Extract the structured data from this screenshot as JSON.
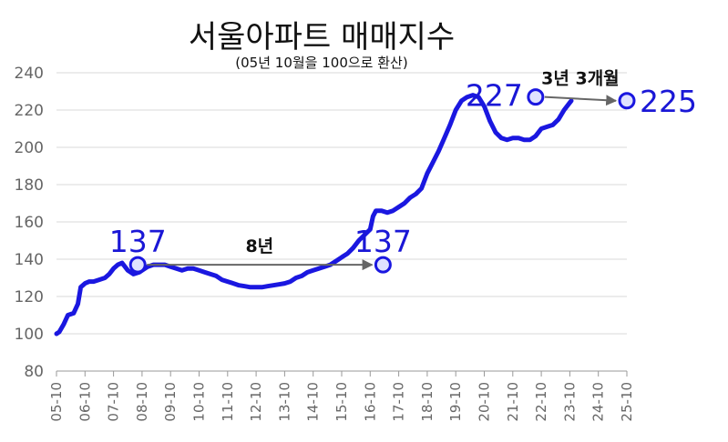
{
  "chart_data": {
    "type": "line",
    "title": "서울아파트 매매지수",
    "subtitle": "(05년 10월을 100으로 환산)",
    "ylim": [
      80,
      240
    ],
    "yticks": [
      "80",
      "100",
      "120",
      "140",
      "160",
      "180",
      "200",
      "220",
      "240"
    ],
    "categories": [
      "05-10",
      "06-10",
      "07-10",
      "08-10",
      "09-10",
      "10-10",
      "11-10",
      "12-10",
      "13-10",
      "14-10",
      "15-10",
      "16-10",
      "17-10",
      "18-10",
      "19-10",
      "20-10",
      "21-10",
      "22-10",
      "23-10",
      "24-10",
      "25-10"
    ],
    "grid": true,
    "series": [
      {
        "color": "#1a17e0",
        "points": [
          [
            0.0,
            100
          ],
          [
            0.1,
            101
          ],
          [
            0.25,
            105
          ],
          [
            0.4,
            110
          ],
          [
            0.6,
            111
          ],
          [
            0.75,
            116
          ],
          [
            0.85,
            125
          ],
          [
            1.0,
            127
          ],
          [
            1.15,
            128
          ],
          [
            1.3,
            128
          ],
          [
            1.5,
            129
          ],
          [
            1.7,
            130
          ],
          [
            1.85,
            132
          ],
          [
            2.0,
            135
          ],
          [
            2.15,
            137
          ],
          [
            2.3,
            138
          ],
          [
            2.5,
            134
          ],
          [
            2.7,
            132
          ],
          [
            2.9,
            133
          ],
          [
            3.0,
            134
          ],
          [
            3.2,
            136
          ],
          [
            3.4,
            137
          ],
          [
            3.6,
            137
          ],
          [
            3.8,
            137
          ],
          [
            4.0,
            136
          ],
          [
            4.2,
            135
          ],
          [
            4.4,
            134
          ],
          [
            4.6,
            135
          ],
          [
            4.8,
            135
          ],
          [
            5.0,
            134
          ],
          [
            5.2,
            133
          ],
          [
            5.4,
            132
          ],
          [
            5.6,
            131
          ],
          [
            5.8,
            129
          ],
          [
            6.0,
            128
          ],
          [
            6.2,
            127
          ],
          [
            6.4,
            126
          ],
          [
            6.6,
            125.5
          ],
          [
            6.8,
            125
          ],
          [
            7.0,
            125
          ],
          [
            7.2,
            125
          ],
          [
            7.4,
            125.5
          ],
          [
            7.6,
            126
          ],
          [
            7.8,
            126.5
          ],
          [
            8.0,
            127
          ],
          [
            8.2,
            128
          ],
          [
            8.4,
            130
          ],
          [
            8.6,
            131
          ],
          [
            8.8,
            133
          ],
          [
            9.0,
            134
          ],
          [
            9.2,
            135
          ],
          [
            9.4,
            136
          ],
          [
            9.6,
            137
          ],
          [
            9.8,
            139
          ],
          [
            10.0,
            141
          ],
          [
            10.2,
            143
          ],
          [
            10.4,
            146
          ],
          [
            10.6,
            150
          ],
          [
            10.8,
            153
          ],
          [
            11.0,
            156
          ],
          [
            11.1,
            163
          ],
          [
            11.2,
            166
          ],
          [
            11.4,
            166
          ],
          [
            11.6,
            165
          ],
          [
            11.8,
            166
          ],
          [
            12.0,
            168
          ],
          [
            12.2,
            170
          ],
          [
            12.4,
            173
          ],
          [
            12.6,
            175
          ],
          [
            12.8,
            178
          ],
          [
            13.0,
            186
          ],
          [
            13.2,
            192
          ],
          [
            13.4,
            198
          ],
          [
            13.6,
            205
          ],
          [
            13.8,
            212
          ],
          [
            14.0,
            220
          ],
          [
            14.2,
            225
          ],
          [
            14.4,
            227
          ],
          [
            14.6,
            228
          ],
          [
            14.8,
            227
          ],
          [
            15.0,
            222
          ],
          [
            15.2,
            214
          ],
          [
            15.4,
            208
          ],
          [
            15.6,
            205
          ],
          [
            15.8,
            204
          ],
          [
            16.0,
            205
          ],
          [
            16.2,
            205
          ],
          [
            16.4,
            204
          ],
          [
            16.6,
            204
          ],
          [
            16.8,
            206
          ],
          [
            17.0,
            210
          ],
          [
            17.2,
            211
          ],
          [
            17.4,
            212
          ],
          [
            17.6,
            215
          ],
          [
            17.8,
            220
          ],
          [
            18.0,
            224
          ],
          [
            18.05,
            225
          ]
        ]
      }
    ],
    "markers": [
      {
        "x": 2.85,
        "y": 137,
        "label": "137"
      },
      {
        "x": 11.45,
        "y": 137,
        "label": "137"
      },
      {
        "x": 16.8,
        "y": 227,
        "label": "227"
      },
      {
        "x": 20.0,
        "y": 225,
        "label": "225"
      }
    ],
    "arrows": [
      {
        "x1": 2.85,
        "y1": 137,
        "x2": 11.45,
        "y2": 137,
        "label": "8년"
      },
      {
        "x1": 16.8,
        "y1": 227,
        "x2": 20.0,
        "y2": 225,
        "label": "3년 3개월"
      }
    ]
  }
}
